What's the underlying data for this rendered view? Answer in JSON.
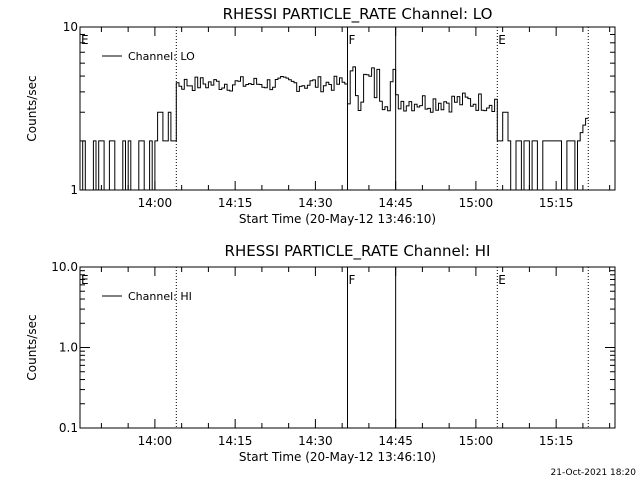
{
  "footer": {
    "timestamp": "21-Oct-2021 18:20"
  },
  "chart_data": [
    {
      "type": "line",
      "title": "RHESSI PARTICLE_RATE Channel: LO",
      "xlabel": "Start Time (20-May-12 13:46:10)",
      "ylabel": "Counts/sec",
      "yscale": "log",
      "ylim": [
        1,
        10
      ],
      "y_tick_labels": [
        "1",
        "10"
      ],
      "x_start": "13:46:10",
      "x_range": [
        "13:46",
        "15:26"
      ],
      "x_tick_labels": [
        "14:00",
        "14:15",
        "14:30",
        "14:45",
        "15:00",
        "15:15"
      ],
      "legend": {
        "label": "Channel: LO",
        "position": "top-left"
      },
      "annotations": [
        {
          "text": "E",
          "x": "13:46",
          "style": "none"
        },
        {
          "text": "",
          "x": "14:04",
          "style": "dotted"
        },
        {
          "text": "F",
          "x": "14:36",
          "style": "solid"
        },
        {
          "text": "",
          "x": "14:45",
          "style": "solid"
        },
        {
          "text": "E",
          "x": "15:04",
          "style": "dotted"
        },
        {
          "text": "",
          "x": "15:21",
          "style": "dotted"
        }
      ],
      "series": [
        {
          "name": "Channel: LO",
          "segments": [
            {
              "x": [
                "13:46",
                "13:54"
              ],
              "pattern": "alternating",
              "values": [
                1,
                2
              ]
            },
            {
              "x": [
                "13:54",
                "14:00"
              ],
              "pattern": "alternating",
              "values": [
                1,
                2
              ]
            },
            {
              "x": [
                "14:00",
                "14:04"
              ],
              "pattern": "alternating",
              "values": [
                2,
                3
              ]
            },
            {
              "x": [
                "14:04",
                "14:36"
              ],
              "pattern": "noisy",
              "values": [
                4,
                5
              ]
            },
            {
              "x": [
                "14:36",
                "14:45"
              ],
              "pattern": "noisy",
              "values": [
                3,
                6
              ]
            },
            {
              "x": [
                "14:45",
                "15:04"
              ],
              "pattern": "noisy",
              "values": [
                3,
                4
              ]
            },
            {
              "x": [
                "15:04",
                "15:06"
              ],
              "pattern": "alternating",
              "values": [
                2,
                3
              ]
            },
            {
              "x": [
                "15:06",
                "15:19"
              ],
              "pattern": "alternating",
              "values": [
                1,
                2
              ]
            },
            {
              "x": [
                "15:19",
                "15:21"
              ],
              "pattern": "rising",
              "values": [
                2,
                3
              ]
            }
          ]
        }
      ]
    },
    {
      "type": "line",
      "title": "RHESSI PARTICLE_RATE Channel: HI",
      "xlabel": "Start Time (20-May-12 13:46:10)",
      "ylabel": "Counts/sec",
      "yscale": "log",
      "ylim": [
        0.1,
        10
      ],
      "y_tick_labels": [
        "0.1",
        "1.0",
        "10.0"
      ],
      "x_start": "13:46:10",
      "x_range": [
        "13:46",
        "15:26"
      ],
      "x_tick_labels": [
        "14:00",
        "14:15",
        "14:30",
        "14:45",
        "15:00",
        "15:15"
      ],
      "legend": {
        "label": "Channel: HI",
        "position": "top-left"
      },
      "annotations": [
        {
          "text": "E",
          "x": "13:46",
          "style": "none"
        },
        {
          "text": "",
          "x": "14:04",
          "style": "dotted"
        },
        {
          "text": "F",
          "x": "14:36",
          "style": "solid"
        },
        {
          "text": "",
          "x": "14:45",
          "style": "solid"
        },
        {
          "text": "E",
          "x": "15:04",
          "style": "dotted"
        },
        {
          "text": "",
          "x": "15:21",
          "style": "dotted"
        }
      ],
      "series": [
        {
          "name": "Channel: HI",
          "segments": []
        }
      ]
    }
  ]
}
